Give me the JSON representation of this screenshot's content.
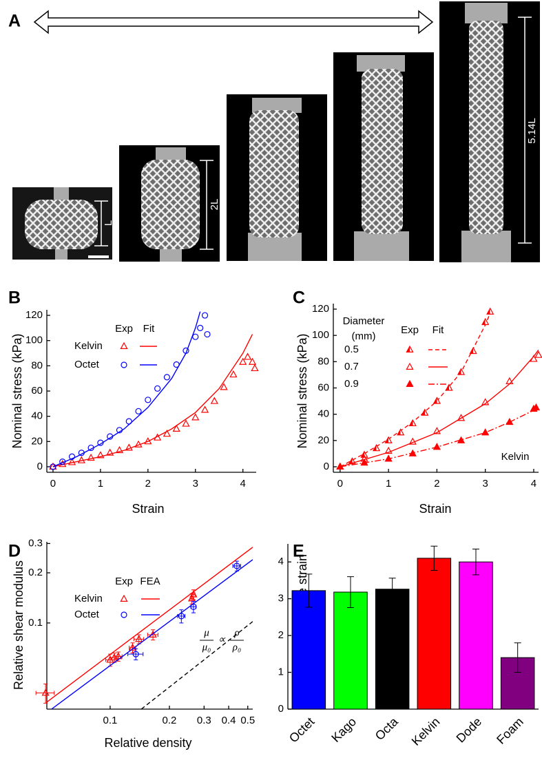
{
  "panel_a": {
    "panel": "A",
    "dims": [
      "L",
      "2L",
      "5.14L"
    ]
  },
  "chart_data": [
    {
      "type": "scatter",
      "panel": "B",
      "xlabel": "Strain",
      "ylabel": "Nominal stress (kPa)",
      "xlim": [
        -0.13,
        4.28
      ],
      "ylim": [
        -4.4,
        124.4
      ],
      "xticks": [
        0,
        1,
        2,
        3,
        4
      ],
      "yticks": [
        0,
        20,
        40,
        60,
        80,
        100,
        120
      ],
      "legend": {
        "columns": [
          "Exp",
          "Fit"
        ]
      },
      "series": [
        {
          "name": "Kelvin",
          "color": "#ff0000",
          "marker": "triangle",
          "marker_fill": "open",
          "x": [
            0,
            0.2,
            0.4,
            0.6,
            0.8,
            1.0,
            1.2,
            1.4,
            1.6,
            1.8,
            2.0,
            2.2,
            2.4,
            2.6,
            2.8,
            3.0,
            3.2,
            3.4,
            3.6,
            3.8,
            4.0,
            4.1,
            4.2,
            4.25
          ],
          "values": [
            0,
            2,
            3.5,
            5,
            7,
            9,
            11,
            13,
            15,
            17.5,
            20,
            23,
            26,
            30,
            34,
            39,
            45,
            52,
            63,
            73,
            83,
            87,
            83,
            78
          ],
          "fit": {
            "x": [
              0,
              0.5,
              1,
              1.5,
              2,
              2.5,
              3,
              3.5,
              4,
              4.2
            ],
            "values": [
              0,
              4,
              8,
              13,
              20,
              30,
              43,
              62,
              90,
              105
            ],
            "dash": "solid"
          }
        },
        {
          "name": "Octet",
          "color": "#0000ff",
          "marker": "circle",
          "marker_fill": "open",
          "x": [
            0,
            0.2,
            0.4,
            0.6,
            0.8,
            1.0,
            1.2,
            1.4,
            1.6,
            1.8,
            2.0,
            2.2,
            2.4,
            2.6,
            2.8,
            3.0,
            3.1,
            3.2,
            3.25
          ],
          "values": [
            0,
            4,
            8,
            11,
            15,
            19,
            24,
            29,
            36,
            44,
            53,
            62,
            71,
            81,
            92,
            103,
            110,
            120,
            105
          ],
          "fit": {
            "x": [
              0,
              0.5,
              1,
              1.5,
              2,
              2.5,
              2.8,
              3.0,
              3.1
            ],
            "values": [
              0,
              8,
              18,
              30,
              47,
              70,
              90,
              110,
              123
            ],
            "dash": "solid"
          }
        }
      ]
    },
    {
      "type": "scatter",
      "panel": "C",
      "xlabel": "Strain",
      "ylabel": "Nominal stress (kPa)",
      "xlim": [
        -0.14,
        4.1
      ],
      "ylim": [
        -4.2,
        124.2
      ],
      "xticks": [
        0,
        1,
        2,
        3,
        4
      ],
      "yticks": [
        0,
        20,
        40,
        60,
        80,
        100,
        120
      ],
      "legend": {
        "title": [
          "Diameter",
          "(mm)"
        ],
        "columns": [
          "Exp",
          "Fit"
        ]
      },
      "annotation": "Kelvin",
      "series": [
        {
          "name": "0.5",
          "color": "#ff0000",
          "marker": "triangle",
          "marker_fill": "half",
          "x": [
            0,
            0.25,
            0.5,
            0.75,
            1,
            1.25,
            1.5,
            1.75,
            2,
            2.25,
            2.5,
            2.75,
            3,
            3.1
          ],
          "values": [
            0,
            4,
            9,
            14,
            20,
            26,
            33,
            41,
            50,
            60,
            72,
            88,
            110,
            118
          ],
          "fit": {
            "x": [
              0,
              0.5,
              1,
              1.5,
              2,
              2.5,
              3,
              3.1
            ],
            "values": [
              0,
              10,
              21,
              34,
              50,
              72,
              108,
              117
            ],
            "dash": "dashed"
          }
        },
        {
          "name": "0.7",
          "color": "#ff0000",
          "marker": "triangle",
          "marker_fill": "open",
          "x": [
            0,
            0.5,
            1,
            1.5,
            2,
            2.5,
            3,
            3.5,
            4,
            4.1
          ],
          "values": [
            0,
            6,
            12,
            19,
            27,
            37,
            49,
            65,
            82,
            85
          ],
          "fit": {
            "x": [
              0,
              1,
              2,
              3,
              3.5,
              4,
              4.1
            ],
            "values": [
              0,
              11,
              26,
              48,
              63,
              84,
              89
            ],
            "dash": "solid"
          }
        },
        {
          "name": "0.9",
          "color": "#ff0000",
          "marker": "triangle",
          "marker_fill": "full",
          "x": [
            0,
            0.5,
            1,
            1.5,
            2,
            2.5,
            3,
            3.5,
            4,
            4.05
          ],
          "values": [
            0,
            3,
            6,
            10,
            15,
            20,
            26,
            34,
            44,
            45
          ],
          "fit": {
            "x": [
              0,
              1,
              2,
              3,
              3.5,
              4,
              4.05
            ],
            "values": [
              0,
              6,
              15,
              26,
              34,
              43,
              45
            ],
            "dash": "dashdot"
          }
        }
      ]
    },
    {
      "type": "scatter",
      "panel": "D",
      "xlabel": "Relative density",
      "ylabel": "Relative shear modulus",
      "xscale": "log",
      "yscale": "log",
      "xlim": [
        0.0477,
        0.53
      ],
      "ylim": [
        0.0304,
        0.307
      ],
      "xticks": [
        0.1,
        0.2,
        0.3,
        0.4,
        0.5
      ],
      "yticks": [
        0.1,
        0.2,
        0.3
      ],
      "legend": {
        "columns": [
          "Exp",
          "FEA"
        ]
      },
      "formula": {
        "lhs": [
          "μ",
          "μ₀"
        ],
        "op": "∝",
        "rhs": [
          "ρ",
          "ρ₀"
        ]
      },
      "reference": {
        "x": [
          0.144,
          0.53
        ],
        "values": [
          0.0304,
          0.102
        ],
        "color": "#000000",
        "dash": "dashed"
      },
      "series": [
        {
          "name": "Kelvin",
          "color": "#ff0000",
          "marker": "triangle",
          "marker_fill": "open",
          "x": [
            0.047,
            0.1,
            0.105,
            0.11,
            0.13,
            0.14,
            0.165,
            0.26,
            0.265
          ],
          "values": [
            0.038,
            0.06,
            0.062,
            0.063,
            0.071,
            0.08,
            0.085,
            0.14,
            0.148
          ],
          "xerr": [
            0.005,
            0.005,
            0.005,
            0.005,
            0.005,
            0.008,
            0.01,
            0.005,
            0.005
          ],
          "yerr": [
            0.005,
            0.005,
            0.004,
            0.004,
            0.005,
            0.005,
            0.006,
            0.01,
            0.01
          ],
          "fit": {
            "x": [
              0.0477,
              0.53
            ],
            "values": [
              0.0335,
              0.285
            ],
            "dash": "solid"
          }
        },
        {
          "name": "Octet",
          "color": "#0000ff",
          "marker": "circle",
          "marker_fill": "open",
          "x": [
            0.135,
            0.23,
            0.265,
            0.44
          ],
          "values": [
            0.065,
            0.11,
            0.125,
            0.22
          ],
          "xerr": [
            0.012,
            0.01,
            0.008,
            0.02
          ],
          "yerr": [
            0.005,
            0.01,
            0.01,
            0.015
          ],
          "fit": {
            "x": [
              0.0504,
              0.53
            ],
            "values": [
              0.0304,
              0.24
            ],
            "dash": "solid"
          }
        }
      ]
    },
    {
      "type": "bar",
      "panel": "E",
      "ylabel": "Maximum reversible strain",
      "categories": [
        "Octet",
        "Kago",
        "Octa",
        "Kelvin",
        "Dode",
        "Foam"
      ],
      "values": [
        3.22,
        3.18,
        3.26,
        4.1,
        4.0,
        1.4
      ],
      "errors": [
        0.45,
        0.42,
        0.3,
        0.33,
        0.35,
        0.4
      ],
      "colors": [
        "#0000ff",
        "#00ff00",
        "#000000",
        "#ff0000",
        "#ff00ff",
        "#800080"
      ],
      "ylim": [
        0,
        4.49
      ],
      "yticks": [
        0,
        1,
        2,
        3,
        4
      ]
    }
  ]
}
